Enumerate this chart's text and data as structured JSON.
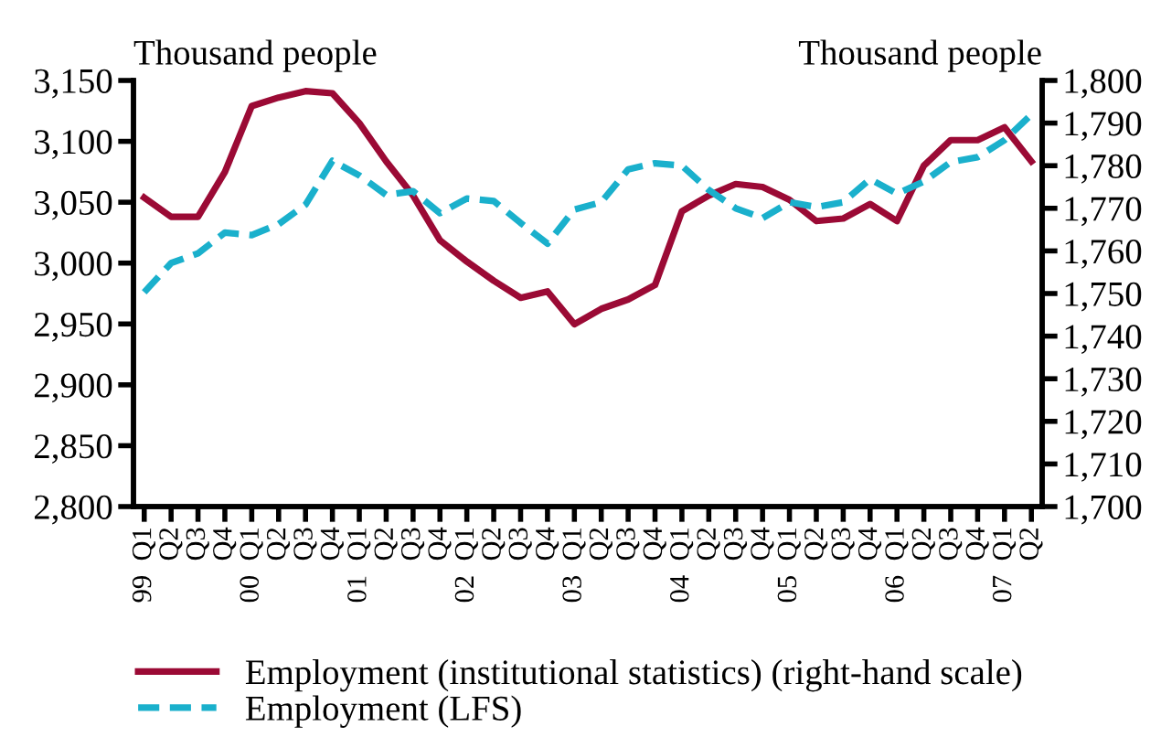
{
  "chart_data": {
    "type": "line",
    "ylabel": "Thousand people",
    "y2label": "Thousand people",
    "categories": [
      "99  Q1",
      "Q2",
      "Q3",
      "Q4",
      "00  Q1",
      "Q2",
      "Q3",
      "Q4",
      "01  Q1",
      "Q2",
      "Q3",
      "Q4",
      "02  Q1",
      "Q2",
      "Q3",
      "Q4",
      "03  Q1",
      "Q2",
      "Q3",
      "Q4",
      "04  Q1",
      "Q2",
      "Q3",
      "Q4",
      "05  Q1",
      "Q2",
      "Q3",
      "Q4",
      "06  Q1",
      "Q2",
      "Q3",
      "Q4",
      "07  Q1",
      "Q2"
    ],
    "series": [
      {
        "name": "Employment (institutional statistics) (right-hand scale)",
        "color": "#9b0a35",
        "axis": "y2",
        "line_style": "solid",
        "values": [
          1772.5,
          1768,
          1768,
          1778.5,
          1794,
          1796,
          1797.5,
          1797,
          1790,
          1781,
          1773,
          1762.5,
          1757.5,
          1753,
          1749,
          1750.5,
          1742.8,
          1746.4,
          1748.6,
          1752,
          1769.3,
          1773,
          1775.7,
          1775,
          1772,
          1767,
          1767.6,
          1771,
          1767,
          1780,
          1786,
          1786,
          1789,
          1781
        ]
      },
      {
        "name": "Employment (LFS)",
        "color": "#1ab0cc",
        "line_style": "dashed",
        "values": [
          2976,
          3000,
          3008,
          3025,
          3023,
          3032,
          3048,
          3084,
          3072,
          3056,
          3059,
          3041,
          3053,
          3051,
          3033,
          3016,
          3044,
          3050,
          3077,
          3082,
          3080,
          3060,
          3045,
          3037,
          3050,
          3046,
          3050,
          3069,
          3057,
          3067,
          3083,
          3087,
          3101,
          3122
        ]
      }
    ],
    "ylim": [
      2800,
      3150
    ],
    "yticks": [
      {
        "value": 2800,
        "label": "2,800"
      },
      {
        "value": 2850,
        "label": "2,850"
      },
      {
        "value": 2900,
        "label": "2,900"
      },
      {
        "value": 2950,
        "label": "2,950"
      },
      {
        "value": 3000,
        "label": "3,000"
      },
      {
        "value": 3050,
        "label": "3,050"
      },
      {
        "value": 3100,
        "label": "3,100"
      },
      {
        "value": 3150,
        "label": "3,150"
      }
    ],
    "y2lim": [
      1700,
      1800
    ],
    "y2ticks": [
      {
        "value": 1700,
        "label": "1,700"
      },
      {
        "value": 1710,
        "label": "1,710"
      },
      {
        "value": 1720,
        "label": "1,720"
      },
      {
        "value": 1730,
        "label": "1,730"
      },
      {
        "value": 1740,
        "label": "1,740"
      },
      {
        "value": 1750,
        "label": "1,750"
      },
      {
        "value": 1760,
        "label": "1,760"
      },
      {
        "value": 1770,
        "label": "1,770"
      },
      {
        "value": 1780,
        "label": "1,780"
      },
      {
        "value": 1790,
        "label": "1,790"
      },
      {
        "value": 1800,
        "label": "1,800"
      }
    ],
    "grid": false,
    "legend": "bottom",
    "marker": "none"
  }
}
